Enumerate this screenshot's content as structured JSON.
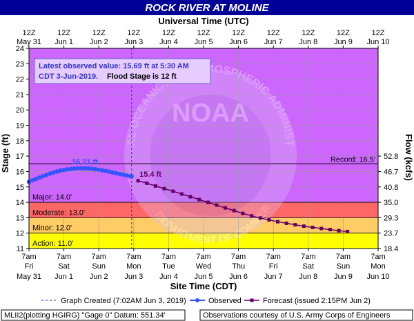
{
  "chart_data": {
    "type": "line",
    "title": "ROCK RIVER AT MOLINE",
    "top_axis_title": "Universal Time (UTC)",
    "xlabel": "Site Time (CDT)",
    "ylabel": "Stage (ft)",
    "ylabel_right": "Flow (kcfs)",
    "ylim": [
      11,
      24
    ],
    "y_ticks": [
      "11",
      "12",
      "13",
      "14",
      "15",
      "16",
      "17",
      "18",
      "19",
      "20",
      "21",
      "22",
      "23",
      "24"
    ],
    "x_ticks_bottom": [
      {
        "time": "7am",
        "day": "Fri",
        "date": "May 31"
      },
      {
        "time": "7am",
        "day": "Sat",
        "date": "Jun 1"
      },
      {
        "time": "7am",
        "day": "Sun",
        "date": "Jun 2"
      },
      {
        "time": "7am",
        "day": "Mon",
        "date": "Jun 3"
      },
      {
        "time": "7am",
        "day": "Tue",
        "date": "Jun 4"
      },
      {
        "time": "7am",
        "day": "Wed",
        "date": "Jun 5"
      },
      {
        "time": "7am",
        "day": "Thu",
        "date": "Jun 6"
      },
      {
        "time": "7am",
        "day": "Fri",
        "date": "Jun 7"
      },
      {
        "time": "7am",
        "day": "Sat",
        "date": "Jun 8"
      },
      {
        "time": "7am",
        "day": "Sun",
        "date": "Jun 9"
      },
      {
        "time": "7am",
        "day": "Mon",
        "date": "Jun 10"
      }
    ],
    "x_ticks_top": [
      {
        "time": "12Z",
        "date": "May 31"
      },
      {
        "time": "12Z",
        "date": "Jun 1"
      },
      {
        "time": "12Z",
        "date": "Jun 2"
      },
      {
        "time": "12Z",
        "date": "Jun 3"
      },
      {
        "time": "12Z",
        "date": "Jun 4"
      },
      {
        "time": "12Z",
        "date": "Jun 5"
      },
      {
        "time": "12Z",
        "date": "Jun 6"
      },
      {
        "time": "12Z",
        "date": "Jun 7"
      },
      {
        "time": "12Z",
        "date": "Jun 8"
      },
      {
        "time": "12Z",
        "date": "Jun 9"
      },
      {
        "time": "12Z",
        "date": "Jun 10"
      }
    ],
    "flow_ticks": [
      {
        "stage": 11,
        "label": "18.4"
      },
      {
        "stage": 12,
        "label": "23.7"
      },
      {
        "stage": 13,
        "label": "29.3"
      },
      {
        "stage": 14,
        "label": "35.0"
      },
      {
        "stage": 15,
        "label": "40.8"
      },
      {
        "stage": 16,
        "label": "46.7"
      },
      {
        "stage": 17,
        "label": "52.8"
      }
    ],
    "bands": [
      {
        "name": "Action",
        "label": "Action: 11.0'",
        "from": 11,
        "to": 12,
        "color": "#ffff00"
      },
      {
        "name": "Minor",
        "label": "Minor: 12.0'",
        "from": 12,
        "to": 13,
        "color": "#ffcc66"
      },
      {
        "name": "Moderate",
        "label": "Moderate: 13.0'",
        "from": 13,
        "to": 14,
        "color": "#ff6666"
      },
      {
        "name": "Major",
        "label": "Major: 14.0'",
        "from": 14,
        "to": 24,
        "color": "#cc66ff"
      }
    ],
    "record": {
      "label": "Record: 16.5'",
      "value": 16.5
    },
    "info_box": {
      "line1": "Latest observed value: 15.69 ft at 5:30 AM",
      "line2": "CDT 3-Jun-2019.",
      "line2b": "Flood Stage is 12 ft"
    },
    "annotations": {
      "observed_peak": {
        "label": "16.21 ft",
        "day": 1.6,
        "value": 16.21
      },
      "forecast_peak": {
        "label": "15.4 ft",
        "day": 3.125,
        "value": 15.4
      }
    },
    "graph_created_day": 2.94,
    "series": [
      {
        "name": "Observed",
        "color": "#3355ff",
        "x_days": [
          0.0,
          0.1,
          0.2,
          0.3,
          0.4,
          0.5,
          0.6,
          0.7,
          0.8,
          0.9,
          1.0,
          1.1,
          1.2,
          1.3,
          1.4,
          1.5,
          1.6,
          1.7,
          1.8,
          1.9,
          2.0,
          2.1,
          2.2,
          2.3,
          2.4,
          2.5,
          2.6,
          2.7,
          2.8,
          2.9,
          2.94
        ],
        "values": [
          15.33,
          15.43,
          15.52,
          15.61,
          15.7,
          15.78,
          15.86,
          15.94,
          16.0,
          16.06,
          16.1,
          16.14,
          16.17,
          16.19,
          16.21,
          16.21,
          16.21,
          16.2,
          16.18,
          16.15,
          16.12,
          16.08,
          16.04,
          15.99,
          15.94,
          15.89,
          15.84,
          15.79,
          15.74,
          15.7,
          15.69
        ]
      },
      {
        "name": "Forecast",
        "color": "#660066",
        "x_days": [
          3.125,
          3.375,
          3.625,
          3.875,
          4.125,
          4.375,
          4.625,
          4.875,
          5.125,
          5.375,
          5.625,
          5.875,
          6.125,
          6.375,
          6.625,
          6.875,
          7.125,
          7.375,
          7.625,
          7.875,
          8.125,
          8.375,
          8.625,
          8.875,
          9.125
        ],
        "values": [
          15.4,
          15.24,
          15.06,
          14.89,
          14.72,
          14.54,
          14.36,
          14.18,
          14.0,
          13.82,
          13.64,
          13.46,
          13.28,
          13.12,
          12.98,
          12.86,
          12.74,
          12.64,
          12.54,
          12.45,
          12.37,
          12.3,
          12.23,
          12.16,
          12.1
        ]
      }
    ]
  },
  "legend": {
    "graph_created": "Graph Created (7:02AM Jun 3, 2019)",
    "observed": "Observed",
    "forecast": "Forecast (issued 2:15PM Jun 2)"
  },
  "footer": {
    "left": "MLII2(plotting HGIRG) \"Gage 0\" Datum: 551.34'",
    "right": "Observations courtesy of U.S. Army Corps of Engineers"
  },
  "watermark": {
    "arc_text": "NATIONAL OCEANIC AND ATMOSPHERIC ADMINISTRATION",
    "bottom_text": "U.S. DEPARTMENT OF COMMERCE",
    "center_text": "NOAA"
  }
}
